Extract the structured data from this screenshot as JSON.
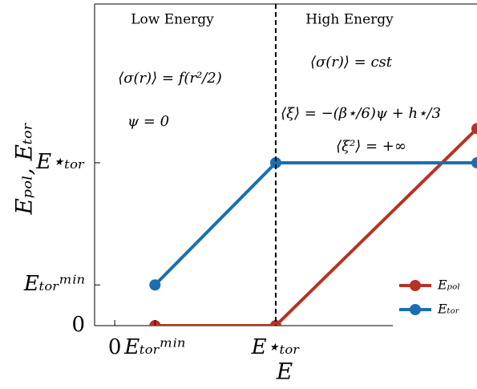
{
  "chart_data": {
    "type": "line",
    "x_label": "E",
    "y_label": "Eₚₒₗ, Eₜₒᵣ",
    "annotations": [
      "Low Energy",
      "High Energy",
      "⟨σ(r)⟩ = f(r²/2)",
      "ψ = 0",
      "⟨σ(r)⟩ = cst",
      "⟨ξ⟩ = −(β⋆/6)ψ + h⋆/3",
      "⟨ξ²⟩ = +∞"
    ],
    "x": [
      1,
      4,
      9
    ],
    "series": [
      {
        "name": "Eₚₒₗ",
        "color": "#b83224",
        "values": [
          0,
          0,
          4.84
        ]
      },
      {
        "name": "Eₜₒᵣ",
        "color": "#1a6fb0",
        "values": [
          1,
          4,
          4
        ]
      }
    ],
    "xlim": [
      -0.5,
      9
    ],
    "xticks": [
      0,
      {
        "value": 1,
        "label": "Eₜₒᵣᵐⁱⁿ"
      },
      {
        "value": 4,
        "label": "E⋆ₜₒᵣ"
      }
    ],
    "ylim": [
      0,
      7.9
    ],
    "yticks": [
      0,
      {
        "value": 1,
        "label": "Eₜₒᵣᵐⁱⁿ"
      },
      {
        "value": 4,
        "label": "E⋆ₜₒᵣ"
      }
    ],
    "legend": "lower right"
  }
}
